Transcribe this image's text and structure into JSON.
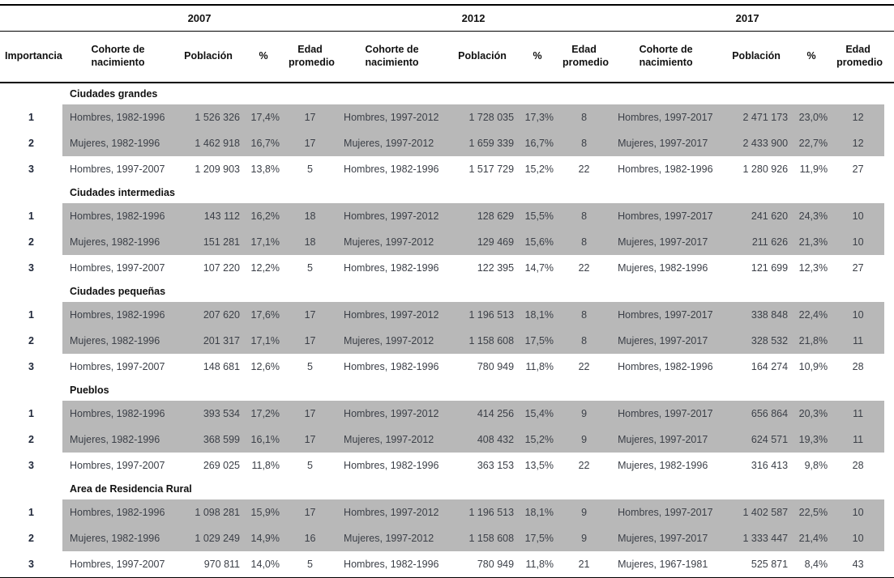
{
  "table": {
    "importancia_header": "Importancia",
    "years": [
      "2007",
      "2012",
      "2017"
    ],
    "sub_headers": {
      "cohorte": "Cohorte de nacimiento",
      "poblacion": "Población",
      "pct": "%",
      "edad": "Edad promedio"
    },
    "colors": {
      "shaded_row": "#b8b8b8",
      "rule": "#000000",
      "data_text": "#3c4048",
      "header_text": "#111111"
    },
    "sections": [
      {
        "title": "Ciudades grandes",
        "rows": [
          {
            "importancia": "1",
            "shaded": true,
            "cells": [
              [
                "Hombres, 1982-1996",
                "1 526 326",
                "17,4%",
                "17"
              ],
              [
                "Hombres, 1997-2012",
                "1 728 035",
                "17,3%",
                "8"
              ],
              [
                "Hombres, 1997-2017",
                "2 471 173",
                "23,0%",
                "12"
              ]
            ]
          },
          {
            "importancia": "2",
            "shaded": true,
            "cells": [
              [
                "Mujeres, 1982-1996",
                "1 462 918",
                "16,7%",
                "17"
              ],
              [
                "Mujeres, 1997-2012",
                "1 659 339",
                "16,7%",
                "8"
              ],
              [
                "Mujeres, 1997-2017",
                "2 433 900",
                "22,7%",
                "12"
              ]
            ]
          },
          {
            "importancia": "3",
            "shaded": false,
            "cells": [
              [
                "Hombres, 1997-2007",
                "1 209 903",
                "13,8%",
                "5"
              ],
              [
                "Hombres, 1982-1996",
                "1 517 729",
                "15,2%",
                "22"
              ],
              [
                "Hombres, 1982-1996",
                "1 280 926",
                "11,9%",
                "27"
              ]
            ]
          }
        ]
      },
      {
        "title": "Ciudades intermedias",
        "rows": [
          {
            "importancia": "1",
            "shaded": true,
            "cells": [
              [
                "Hombres, 1982-1996",
                "143 112",
                "16,2%",
                "18"
              ],
              [
                "Hombres, 1997-2012",
                "128 629",
                "15,5%",
                "8"
              ],
              [
                "Hombres, 1997-2017",
                "241 620",
                "24,3%",
                "10"
              ]
            ]
          },
          {
            "importancia": "2",
            "shaded": true,
            "cells": [
              [
                "Mujeres, 1982-1996",
                "151 281",
                "17,1%",
                "18"
              ],
              [
                "Mujeres, 1997-2012",
                "129 469",
                "15,6%",
                "8"
              ],
              [
                "Mujeres, 1997-2017",
                "211 626",
                "21,3%",
                "10"
              ]
            ]
          },
          {
            "importancia": "3",
            "shaded": false,
            "cells": [
              [
                "Hombres, 1997-2007",
                "107 220",
                "12,2%",
                "5"
              ],
              [
                "Hombres, 1982-1996",
                "122 395",
                "14,7%",
                "22"
              ],
              [
                "Mujeres, 1982-1996",
                "121 699",
                "12,3%",
                "27"
              ]
            ]
          }
        ]
      },
      {
        "title": "Ciudades pequeñas",
        "rows": [
          {
            "importancia": "1",
            "shaded": true,
            "cells": [
              [
                "Hombres, 1982-1996",
                "207 620",
                "17,6%",
                "17"
              ],
              [
                "Hombres, 1997-2012",
                "1 196 513",
                "18,1%",
                "8"
              ],
              [
                "Hombres, 1997-2017",
                "338 848",
                "22,4%",
                "10"
              ]
            ]
          },
          {
            "importancia": "2",
            "shaded": true,
            "cells": [
              [
                "Mujeres, 1982-1996",
                "201 317",
                "17,1%",
                "17"
              ],
              [
                "Mujeres, 1997-2012",
                "1 158 608",
                "17,5%",
                "8"
              ],
              [
                "Mujeres, 1997-2017",
                "328 532",
                "21,8%",
                "11"
              ]
            ]
          },
          {
            "importancia": "3",
            "shaded": false,
            "cells": [
              [
                "Hombres, 1997-2007",
                "148 681",
                "12,6%",
                "5"
              ],
              [
                "Hombres, 1982-1996",
                "780 949",
                "11,8%",
                "22"
              ],
              [
                "Hombres, 1982-1996",
                "164 274",
                "10,9%",
                "28"
              ]
            ]
          }
        ]
      },
      {
        "title": "Pueblos",
        "rows": [
          {
            "importancia": "1",
            "shaded": true,
            "cells": [
              [
                "Hombres, 1982-1996",
                "393 534",
                "17,2%",
                "17"
              ],
              [
                "Hombres, 1997-2012",
                "414 256",
                "15,4%",
                "9"
              ],
              [
                "Hombres, 1997-2017",
                "656 864",
                "20,3%",
                "11"
              ]
            ]
          },
          {
            "importancia": "2",
            "shaded": true,
            "cells": [
              [
                "Mujeres, 1982-1996",
                "368 599",
                "16,1%",
                "17"
              ],
              [
                "Mujeres, 1997-2012",
                "408 432",
                "15,2%",
                "9"
              ],
              [
                "Mujeres, 1997-2017",
                "624 571",
                "19,3%",
                "11"
              ]
            ]
          },
          {
            "importancia": "3",
            "shaded": false,
            "cells": [
              [
                "Hombres, 1997-2007",
                "269 025",
                "11,8%",
                "5"
              ],
              [
                "Hombres, 1982-1996",
                "363 153",
                "13,5%",
                "22"
              ],
              [
                "Mujeres, 1982-1996",
                "316 413",
                "9,8%",
                "28"
              ]
            ]
          }
        ]
      },
      {
        "title": "Area de Residencia Rural",
        "rows": [
          {
            "importancia": "1",
            "shaded": true,
            "cells": [
              [
                "Hombres, 1982-1996",
                "1 098 281",
                "15,9%",
                "17"
              ],
              [
                "Hombres, 1997-2012",
                "1 196 513",
                "18,1%",
                "9"
              ],
              [
                "Hombres, 1997-2017",
                "1 402 587",
                "22,5%",
                "10"
              ]
            ]
          },
          {
            "importancia": "2",
            "shaded": true,
            "cells": [
              [
                "Mujeres, 1982-1996",
                "1 029 249",
                "14,9%",
                "16"
              ],
              [
                "Mujeres, 1997-2012",
                "1 158 608",
                "17,5%",
                "9"
              ],
              [
                "Mujeres, 1997-2017",
                "1 333 447",
                "21,4%",
                "10"
              ]
            ]
          },
          {
            "importancia": "3",
            "shaded": false,
            "cells": [
              [
                "Hombres, 1997-2007",
                "970 811",
                "14,0%",
                "5"
              ],
              [
                "Hombres, 1982-1996",
                "780 949",
                "11,8%",
                "21"
              ],
              [
                "Mujeres, 1967-1981",
                "525 871",
                "8,4%",
                "43"
              ]
            ]
          }
        ]
      }
    ]
  }
}
